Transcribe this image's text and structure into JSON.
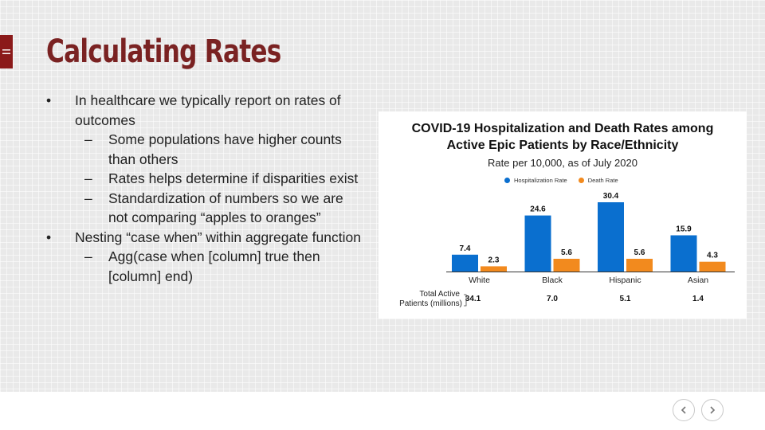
{
  "slide": {
    "title": "Calculating Rates",
    "bullets": [
      {
        "level": 1,
        "marker": "•",
        "text": "In healthcare we typically report on rates of outcomes"
      },
      {
        "level": 2,
        "marker": "–",
        "text": "Some populations have higher counts than others"
      },
      {
        "level": 2,
        "marker": "–",
        "text": "Rates helps determine if disparities exist"
      },
      {
        "level": 2,
        "marker": "–",
        "text": "Standardization of numbers so we are not comparing “apples to oranges”"
      },
      {
        "level": 1,
        "marker": "•",
        "text": "Nesting “case when” within aggregate function"
      },
      {
        "level": 2,
        "marker": "–",
        "text": "Agg(case when [column] true then [column] end)"
      }
    ]
  },
  "chart_data": {
    "type": "bar",
    "title_line1": "COVID-19 Hospitalization and Death Rates among",
    "title_line2": "Active Epic Patients by Race/Ethnicity",
    "subtitle": "Rate per 10,000, as of July 2020",
    "categories": [
      "White",
      "Black",
      "Hispanic",
      "Asian"
    ],
    "series": [
      {
        "name": "Hospitalization Rate",
        "values": [
          7.4,
          24.6,
          30.4,
          15.9
        ],
        "color": "#0a6fcf"
      },
      {
        "name": "Death Rate",
        "values": [
          2.3,
          5.6,
          5.6,
          4.3
        ],
        "color": "#f28a1e"
      }
    ],
    "row_label_line1": "Total Active",
    "row_label_line2": "Patients (millions)",
    "row_values": [
      "34.1",
      "7.0",
      "5.1",
      "1.4"
    ],
    "ylim": [
      0,
      30.4
    ],
    "legend_position": "top",
    "grid": false
  },
  "colors": {
    "title": "#7a2222",
    "menu_tab": "#8b1a1a",
    "hospitalization": "#0a6fcf",
    "death": "#f28a1e"
  },
  "icons": {
    "menu": "hamburger-icon",
    "prev": "chevron-left-icon",
    "next": "chevron-right-icon"
  }
}
